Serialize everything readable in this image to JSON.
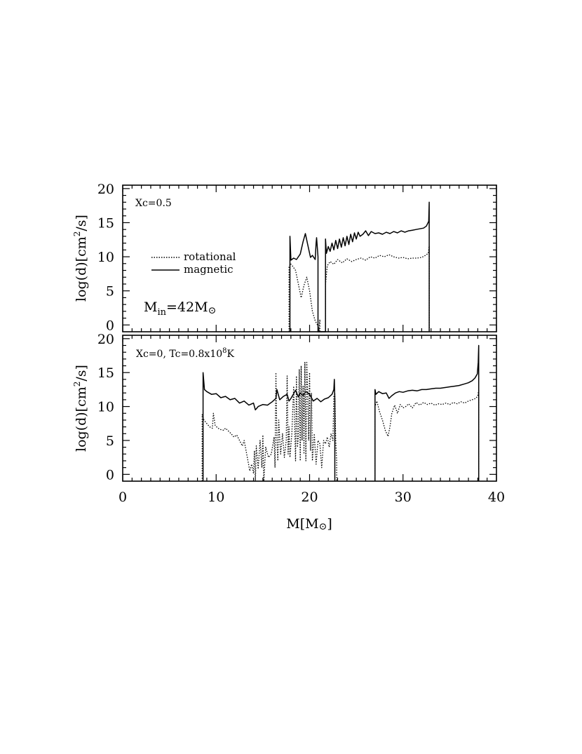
{
  "chart_data": [
    {
      "type": "line",
      "annotation": "Xc=0.5",
      "mass_label": {
        "main": "M",
        "sub": "in",
        "value": "=42M",
        "sun": "⊙"
      },
      "ylabel": {
        "pre": "log(d)[cm",
        "sup": "2",
        "post": "/s]"
      },
      "xlim": [
        0,
        40
      ],
      "ylim": [
        -1,
        20.5
      ],
      "yticks": [
        0,
        5,
        10,
        15,
        20
      ],
      "xticks": [
        0,
        10,
        20,
        30,
        40
      ],
      "legend": {
        "position": "left",
        "entries": [
          {
            "label": "rotational",
            "style": "dotted"
          },
          {
            "label": "magnetic",
            "style": "solid"
          }
        ]
      },
      "series": [
        {
          "name": "magnetic",
          "style": "solid",
          "x": [
            17.9,
            17.9,
            18.0,
            18.3,
            18.6,
            19.0,
            19.3,
            19.55,
            19.8,
            20.1,
            20.3,
            20.6,
            20.7,
            20.75,
            20.9,
            20.9,
            21.7,
            21.7,
            21.8,
            22.0,
            22.2,
            22.4,
            22.6,
            22.8,
            23.0,
            23.2,
            23.4,
            23.6,
            23.8,
            24.0,
            24.2,
            24.4,
            24.6,
            24.8,
            25.0,
            25.2,
            25.4,
            25.7,
            26.0,
            26.3,
            26.6,
            27.0,
            27.4,
            27.8,
            28.2,
            28.6,
            29.0,
            29.4,
            29.8,
            30.2,
            30.6,
            31.0,
            31.4,
            31.8,
            32.2,
            32.5,
            32.75,
            32.8,
            32.8
          ],
          "y": [
            -1,
            13.0,
            9.5,
            9.8,
            9.6,
            10.4,
            12.2,
            13.4,
            11.8,
            9.9,
            10.2,
            9.6,
            12.0,
            12.8,
            10.0,
            -1,
            -1,
            12.6,
            10.5,
            11.5,
            10.8,
            12.0,
            11.0,
            12.4,
            11.2,
            12.6,
            11.4,
            12.8,
            11.6,
            13.0,
            11.8,
            13.3,
            12.2,
            13.5,
            12.6,
            13.6,
            13.0,
            13.3,
            13.8,
            13.1,
            13.7,
            13.4,
            13.5,
            13.3,
            13.6,
            13.4,
            13.7,
            13.5,
            13.8,
            13.6,
            13.8,
            13.9,
            14.0,
            14.1,
            14.2,
            14.5,
            15.2,
            18.0,
            -1
          ]
        },
        {
          "name": "rotational",
          "style": "dotted",
          "x": [
            17.8,
            17.8,
            17.95,
            18.2,
            18.5,
            18.8,
            19.1,
            19.4,
            19.7,
            20.0,
            20.3,
            20.6,
            20.8,
            21.0,
            21.1,
            21.1,
            21.7,
            21.7,
            21.9,
            22.2,
            22.6,
            23.0,
            23.5,
            24.0,
            24.5,
            25.0,
            25.5,
            26.0,
            26.5,
            27.0,
            27.5,
            28.0,
            28.5,
            29.0,
            29.5,
            30.0,
            30.5,
            31.0,
            31.5,
            32.0,
            32.4,
            32.7,
            32.8,
            32.8
          ],
          "y": [
            -1,
            8.5,
            9.0,
            8.6,
            8.0,
            6.0,
            4.0,
            5.8,
            7.0,
            5.0,
            2.0,
            0.6,
            0.1,
            -0.5,
            0.8,
            -1,
            -1,
            6.0,
            8.7,
            9.3,
            8.9,
            9.6,
            9.1,
            9.7,
            9.3,
            9.6,
            9.8,
            9.5,
            10.0,
            9.8,
            10.2,
            10.0,
            10.3,
            10.0,
            9.8,
            9.9,
            9.7,
            9.8,
            9.8,
            9.9,
            10.2,
            10.5,
            11.6,
            -1
          ]
        }
      ]
    },
    {
      "type": "line",
      "annotation": {
        "pre": "Xc=0,  Tc=0.8x10",
        "sup": "8",
        "post": "K"
      },
      "ylabel": {
        "pre": "log(d)[cm",
        "sup": "2",
        "post": "/s]"
      },
      "xlabel": {
        "pre": "M[M",
        "sun": "⊙",
        "post": "]"
      },
      "xlim": [
        0,
        40
      ],
      "ylim": [
        -1,
        20.5
      ],
      "yticks": [
        0,
        5,
        10,
        15,
        20
      ],
      "xticks": [
        0,
        10,
        20,
        30,
        40
      ],
      "xticklabels": [
        "0",
        "10",
        "20",
        "30",
        "40"
      ],
      "series": [
        {
          "name": "magnetic",
          "style": "solid",
          "x": [
            8.6,
            8.6,
            8.75,
            9.0,
            9.5,
            10.0,
            10.5,
            11.0,
            11.5,
            12.0,
            12.5,
            13.0,
            13.5,
            14.0,
            14.2,
            14.5,
            15.0,
            15.5,
            16.0,
            16.4,
            16.5,
            16.8,
            17.2,
            17.6,
            17.8,
            18.0,
            18.3,
            18.5,
            18.8,
            19.0,
            19.3,
            19.6,
            20.0,
            20.4,
            20.8,
            21.2,
            21.6,
            22.0,
            22.4,
            22.6,
            22.65,
            22.7,
            22.7
          ],
          "y": [
            -1,
            15.0,
            12.5,
            12.2,
            11.8,
            11.9,
            11.3,
            11.5,
            11.0,
            11.2,
            10.5,
            10.8,
            10.2,
            10.5,
            9.5,
            10.0,
            10.3,
            10.2,
            10.7,
            11.2,
            12.5,
            11.0,
            11.5,
            11.8,
            10.8,
            11.2,
            11.9,
            12.4,
            11.4,
            12.0,
            11.6,
            12.2,
            11.8,
            10.8,
            11.2,
            10.7,
            11.1,
            11.3,
            11.8,
            12.5,
            14.0,
            11.0,
            -1
          ]
        },
        {
          "name": "magnetic",
          "style": "solid",
          "x": [
            27.0,
            27.0,
            27.1,
            27.4,
            27.8,
            28.2,
            28.5,
            28.8,
            29.2,
            29.6,
            30.0,
            30.5,
            31.0,
            31.5,
            32.0,
            32.5,
            33.0,
            33.5,
            34.0,
            34.5,
            35.0,
            35.5,
            36.0,
            36.5,
            37.0,
            37.4,
            37.7,
            37.95,
            38.05,
            38.1,
            38.1
          ],
          "y": [
            -1,
            12.5,
            11.8,
            12.2,
            11.9,
            12.0,
            11.2,
            11.6,
            12.0,
            12.2,
            12.1,
            12.3,
            12.4,
            12.3,
            12.5,
            12.5,
            12.6,
            12.7,
            12.7,
            12.8,
            12.9,
            13.0,
            13.1,
            13.3,
            13.5,
            13.8,
            14.2,
            14.8,
            16.5,
            19.0,
            -1
          ]
        },
        {
          "name": "rotational",
          "style": "dotted",
          "x": [
            8.5,
            8.5,
            8.7,
            9.0,
            9.3,
            9.6,
            9.7,
            9.9,
            10.2,
            10.5,
            10.8,
            11.0,
            11.3,
            11.6,
            11.9,
            12.2,
            12.5,
            12.8,
            13.0,
            13.2,
            13.4,
            13.6,
            13.8,
            14.0,
            14.1,
            14.2,
            14.3,
            14.5,
            14.7,
            14.9,
            15.0,
            15.1,
            15.3,
            15.6,
            15.9,
            16.2,
            16.3,
            16.4,
            16.5,
            16.6,
            16.7,
            16.9,
            17.1,
            17.3,
            17.5,
            17.6,
            17.7,
            17.8,
            17.9,
            18.1,
            18.3,
            18.5,
            18.6,
            18.7,
            18.8,
            18.9,
            19.0,
            19.1,
            19.2,
            19.3,
            19.4,
            19.5,
            19.6,
            19.7,
            19.8,
            19.9,
            20.0,
            20.1,
            20.2,
            20.3,
            20.5,
            20.7,
            20.9,
            21.1,
            21.3,
            21.5,
            21.7,
            21.9,
            22.1,
            22.3,
            22.5,
            22.6,
            22.7,
            22.8,
            22.9,
            22.9
          ],
          "y": [
            -1,
            8.8,
            8.0,
            7.5,
            7.0,
            6.8,
            9.0,
            7.2,
            6.8,
            6.6,
            6.5,
            6.8,
            6.4,
            6.0,
            5.5,
            5.8,
            5.0,
            4.2,
            5.0,
            3.5,
            2.0,
            0.5,
            1.5,
            0.2,
            3.5,
            -1,
            4.2,
            0.8,
            5.0,
            1.0,
            5.8,
            -1,
            4.0,
            2.5,
            3.0,
            5.5,
            1.0,
            15.0,
            5.0,
            2.0,
            8.0,
            3.0,
            6.0,
            2.5,
            5.0,
            14.5,
            3.0,
            7.0,
            2.5,
            6.0,
            13.0,
            2.0,
            14.5,
            4.0,
            5.5,
            15.5,
            2.0,
            16.0,
            5.0,
            13.0,
            3.0,
            16.5,
            2.0,
            16.5,
            12.0,
            5.0,
            15.0,
            3.5,
            12.0,
            2.0,
            6.0,
            1.5,
            5.0,
            4.5,
            1.0,
            5.0,
            4.5,
            5.5,
            4.0,
            6.0,
            5.0,
            11.5,
            12.0,
            5.0,
            2.0,
            -1
          ]
        },
        {
          "name": "rotational",
          "style": "dotted",
          "x": [
            27.0,
            27.0,
            27.2,
            27.5,
            27.8,
            28.1,
            28.4,
            28.6,
            28.8,
            29.1,
            29.4,
            29.7,
            30.0,
            30.3,
            30.6,
            31.0,
            31.4,
            31.8,
            32.2,
            32.6,
            33.0,
            33.4,
            33.8,
            34.2,
            34.6,
            35.0,
            35.4,
            35.8,
            36.2,
            36.6,
            37.0,
            37.4,
            37.8,
            38.0,
            38.1,
            38.1
          ],
          "y": [
            -1,
            10.0,
            10.8,
            9.2,
            8.0,
            6.5,
            5.6,
            7.0,
            9.0,
            10.2,
            9.0,
            10.3,
            9.8,
            10.0,
            10.4,
            9.8,
            10.6,
            10.2,
            10.6,
            10.3,
            10.5,
            10.2,
            10.4,
            10.3,
            10.5,
            10.3,
            10.6,
            10.4,
            10.7,
            10.5,
            10.8,
            11.0,
            11.2,
            11.6,
            12.4,
            -1
          ]
        }
      ]
    }
  ]
}
